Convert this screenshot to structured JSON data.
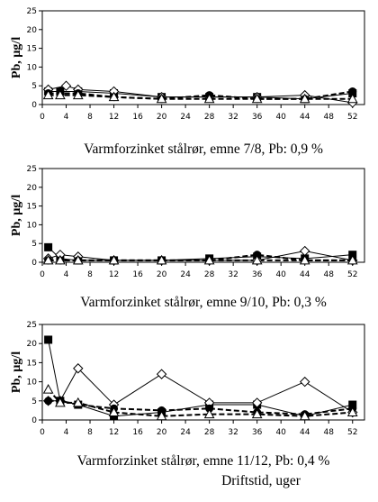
{
  "xlabel": "Driftstid, uger",
  "chart_data": [
    {
      "type": "line",
      "title": "Varmforzinket stålrør, emne 7/8, Pb: 0,9 %",
      "ylabel": "Pb, µg/l",
      "xlim": [
        0,
        54
      ],
      "ylim": [
        0,
        25
      ],
      "xticks": [
        0,
        4,
        8,
        12,
        16,
        20,
        24,
        28,
        32,
        36,
        40,
        44,
        48,
        52
      ],
      "yticks": [
        0,
        5,
        10,
        15,
        20,
        25
      ],
      "grid": false,
      "legend": "none",
      "series": [
        {
          "marker": "square-filled",
          "line": "solid",
          "x": [
            1,
            3,
            6,
            12,
            20,
            28,
            36,
            44,
            52
          ],
          "y": [
            3.5,
            3.5,
            3.5,
            3,
            2,
            2,
            2,
            1.5,
            3
          ]
        },
        {
          "marker": "diamond-open",
          "line": "solid",
          "x": [
            1,
            4,
            6,
            12,
            20,
            28,
            36,
            44,
            52
          ],
          "y": [
            4,
            5,
            4,
            3.5,
            2,
            2,
            2,
            2.5,
            0.5
          ]
        },
        {
          "marker": "circle-filled",
          "line": "dashed",
          "x": [
            1,
            3,
            6,
            12,
            20,
            28,
            36,
            44,
            52
          ],
          "y": [
            3,
            3,
            3,
            2,
            1.5,
            2.5,
            1.5,
            1.5,
            3.5
          ]
        },
        {
          "marker": "triangle-open",
          "line": "dashed",
          "x": [
            1,
            3,
            6,
            12,
            20,
            28,
            36,
            44,
            52
          ],
          "y": [
            2.5,
            2.5,
            2.5,
            2,
            1.5,
            1.5,
            1.5,
            1.5,
            1.5
          ]
        }
      ]
    },
    {
      "type": "line",
      "title": "Varmforzinket stålrør, emne 9/10, Pb: 0,3 %",
      "ylabel": "Pb, µg/l",
      "xlim": [
        0,
        54
      ],
      "ylim": [
        0,
        25
      ],
      "xticks": [
        0,
        4,
        8,
        12,
        16,
        20,
        24,
        28,
        32,
        36,
        40,
        44,
        48,
        52
      ],
      "yticks": [
        0,
        5,
        10,
        15,
        20,
        25
      ],
      "grid": false,
      "legend": "none",
      "series": [
        {
          "marker": "square-filled",
          "line": "solid",
          "x": [
            1,
            3,
            6,
            12,
            20,
            28,
            36,
            44,
            52
          ],
          "y": [
            4,
            1,
            0.5,
            0.5,
            0.5,
            1,
            1.5,
            1,
            2
          ]
        },
        {
          "marker": "diamond-open",
          "line": "solid",
          "x": [
            1,
            3,
            6,
            12,
            20,
            28,
            36,
            44,
            52
          ],
          "y": [
            1,
            2,
            1.5,
            0.5,
            0.5,
            0.5,
            0.5,
            3,
            0.5
          ]
        },
        {
          "marker": "circle-filled",
          "line": "dashed",
          "x": [
            1,
            3,
            6,
            12,
            20,
            28,
            36,
            44,
            52
          ],
          "y": [
            0.5,
            0.5,
            0.5,
            0.5,
            0.5,
            0.5,
            2,
            0.5,
            0.5
          ]
        },
        {
          "marker": "triangle-open",
          "line": "dashed",
          "x": [
            1,
            3,
            6,
            12,
            20,
            28,
            36,
            44,
            52
          ],
          "y": [
            0.5,
            0.5,
            0.5,
            0.5,
            0.5,
            0.5,
            0.5,
            0.5,
            0.5
          ]
        }
      ]
    },
    {
      "type": "line",
      "title": "Varmforzinket stålrør, emne 11/12, Pb: 0,4 %",
      "ylabel": "Pb, µg/l",
      "xlim": [
        0,
        54
      ],
      "ylim": [
        0,
        25
      ],
      "xticks": [
        0,
        4,
        8,
        12,
        16,
        20,
        24,
        28,
        32,
        36,
        40,
        44,
        48,
        52
      ],
      "yticks": [
        0,
        5,
        10,
        15,
        20,
        25
      ],
      "grid": false,
      "legend": "none",
      "series": [
        {
          "marker": "square-filled",
          "line": "solid",
          "x": [
            1,
            3,
            6,
            12,
            20,
            28,
            36,
            44,
            52
          ],
          "y": [
            21,
            5,
            4,
            1,
            2,
            4,
            4,
            1,
            4
          ]
        },
        {
          "marker": "diamond-open",
          "line": "solid",
          "x": [
            1,
            3,
            6,
            12,
            20,
            28,
            36,
            44,
            52
          ],
          "y": [
            5,
            5,
            13.5,
            4,
            12,
            4.5,
            4.5,
            10,
            2
          ]
        },
        {
          "marker": "circle-filled",
          "line": "dashed",
          "x": [
            1,
            3,
            6,
            12,
            20,
            28,
            36,
            44,
            52
          ],
          "y": [
            5,
            5,
            4,
            3,
            2.5,
            3,
            2,
            1.5,
            3
          ]
        },
        {
          "marker": "triangle-open",
          "line": "dashed",
          "x": [
            1,
            3,
            6,
            12,
            20,
            28,
            36,
            44,
            52
          ],
          "y": [
            8,
            4.5,
            4.5,
            2,
            1,
            1.5,
            1.5,
            1,
            2
          ]
        }
      ]
    }
  ]
}
